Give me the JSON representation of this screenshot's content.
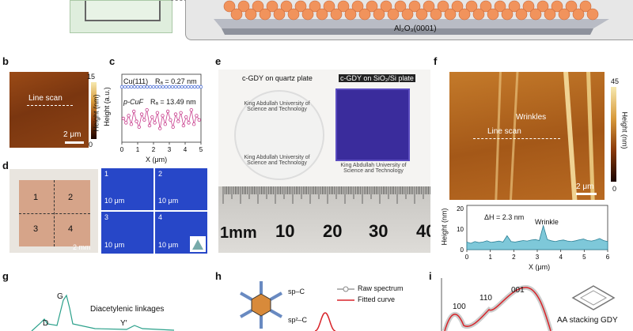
{
  "panel_a": {
    "substrate_label": "Al₂O₃(0001)"
  },
  "panel_labels": {
    "b": "b",
    "c": "c",
    "d": "d",
    "e": "e",
    "f": "f",
    "g": "g",
    "h": "h",
    "i": "i"
  },
  "panel_b": {
    "line_scan": "Line scan",
    "scale_bar": "2 μm",
    "cbar_max": "15",
    "cbar_min": "0",
    "cbar_title": "Height (nm)"
  },
  "panel_c": {
    "ylabel": "Height (a.u.)",
    "xlabel": "X (μm)",
    "cu_label": "Cu(111)",
    "cu_rq": "Rₐ = 0.27 nm",
    "cuf_label": "p-CuF",
    "cuf_rq": "Rₐ = 13.49 nm",
    "xticks": [
      "0",
      "1",
      "2",
      "3",
      "4",
      "5"
    ]
  },
  "panel_d": {
    "quadrants": [
      "1",
      "2",
      "3",
      "4"
    ],
    "scale_bar": "2 mm",
    "sub_labels": [
      "1",
      "2",
      "3",
      "4"
    ],
    "sub_scale": "10 μm"
  },
  "panel_e": {
    "left_title": "c-GDY on quartz plate",
    "right_title": "c-GDY on SiO₂/Si plate",
    "kaust_en": "King Abdullah University of Science and Technology",
    "ruler_labels": [
      "1mm",
      "10",
      "20",
      "30",
      "40"
    ]
  },
  "panel_f": {
    "wrinkles": "Wrinkles",
    "line_scan": "Line scan",
    "scale_bar": "2 μm",
    "cbar_max": "45",
    "cbar_min": "0",
    "cbar_title": "Height (nm)",
    "ylabel": "Height (nm)",
    "xlabel": "X (μm)",
    "dh": "ΔH = 2.3 nm",
    "wrinkle": "Wrinkle",
    "xticks": [
      "0",
      "1",
      "2",
      "3",
      "4",
      "5",
      "6"
    ],
    "yticks": [
      "0",
      "10",
      "20"
    ]
  },
  "panel_g": {
    "peak_g": "G",
    "peak_d": "D",
    "peak_y": "Y′",
    "text": "Diacetylenic linkages"
  },
  "panel_h": {
    "sp": "sp–C",
    "sp2": "sp²–C",
    "legend_raw": "Raw spectrum",
    "legend_fit": "Fitted curve"
  },
  "panel_i": {
    "p100": "100",
    "p110": "110",
    "p001": "001",
    "stacking": "AA stacking GDY"
  }
}
